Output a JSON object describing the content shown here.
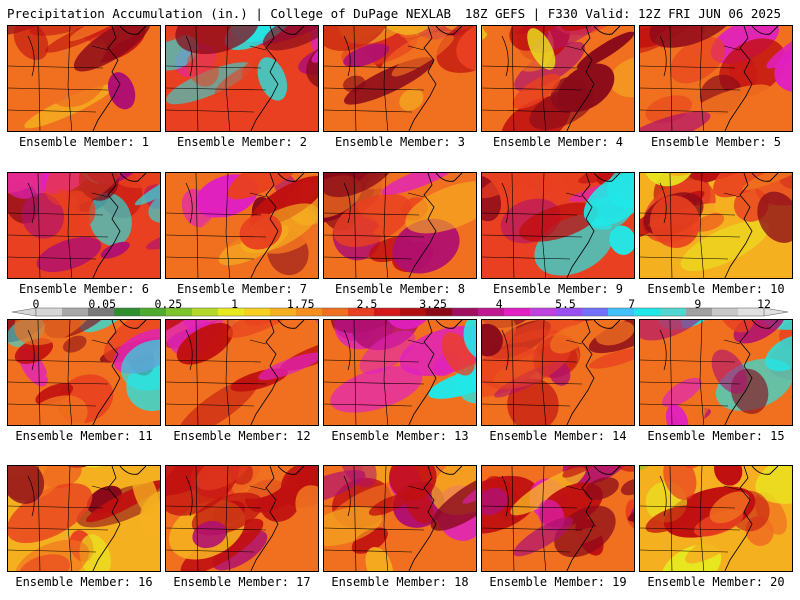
{
  "header": {
    "title": "Precipitation Accumulation (in.) | College of DuPage NEXLAB",
    "run_info": "18Z GEFS | F330 Valid: 12Z FRI JUN 06 2025"
  },
  "members": [
    {
      "label": "Ensemble Member: 1",
      "intensity": 0.55
    },
    {
      "label": "Ensemble Member: 2",
      "intensity": 0.75
    },
    {
      "label": "Ensemble Member: 3",
      "intensity": 0.55
    },
    {
      "label": "Ensemble Member: 4",
      "intensity": 0.5
    },
    {
      "label": "Ensemble Member: 5",
      "intensity": 0.65
    },
    {
      "label": "Ensemble Member: 6",
      "intensity": 0.75
    },
    {
      "label": "Ensemble Member: 7",
      "intensity": 0.6
    },
    {
      "label": "Ensemble Member: 8",
      "intensity": 0.6
    },
    {
      "label": "Ensemble Member: 9",
      "intensity": 0.75
    },
    {
      "label": "Ensemble Member: 10",
      "intensity": 0.45
    },
    {
      "label": "Ensemble Member: 11",
      "intensity": 0.7
    },
    {
      "label": "Ensemble Member: 12",
      "intensity": 0.65
    },
    {
      "label": "Ensemble Member: 13",
      "intensity": 0.7
    },
    {
      "label": "Ensemble Member: 14",
      "intensity": 0.55
    },
    {
      "label": "Ensemble Member: 15",
      "intensity": 0.7
    },
    {
      "label": "Ensemble Member: 16",
      "intensity": 0.45
    },
    {
      "label": "Ensemble Member: 17",
      "intensity": 0.55
    },
    {
      "label": "Ensemble Member: 18",
      "intensity": 0.6
    },
    {
      "label": "Ensemble Member: 19",
      "intensity": 0.65
    },
    {
      "label": "Ensemble Member: 20",
      "intensity": 0.35
    }
  ],
  "colorbar": {
    "tick_labels": [
      "0",
      "0.05",
      "0.25",
      "1",
      "1.75",
      "2.5",
      "3.25",
      "4",
      "5.5",
      "7",
      "9",
      "12"
    ],
    "colors": [
      "#d6d6d6",
      "#a8a8a8",
      "#7a7a7a",
      "#2f8f2f",
      "#4faa2f",
      "#7cc42c",
      "#b4d92c",
      "#e8e820",
      "#f5d020",
      "#f5b020",
      "#f59020",
      "#f07020",
      "#e84020",
      "#d41a1a",
      "#b01010",
      "#8a0a1a",
      "#a01060",
      "#c01890",
      "#e020c0",
      "#c040e0",
      "#9a50f0",
      "#7070f8",
      "#40c0f8",
      "#20e8e8",
      "#50d8d0",
      "#a0a0a0",
      "#c8c8c8",
      "#e0e0e0"
    ]
  },
  "map_palette": [
    "#2f8f2f",
    "#7cc42c",
    "#e8e820",
    "#f5b020",
    "#f07020",
    "#e84020",
    "#c01010",
    "#8a0a1a",
    "#b01070",
    "#e020c0",
    "#20e8e8"
  ]
}
